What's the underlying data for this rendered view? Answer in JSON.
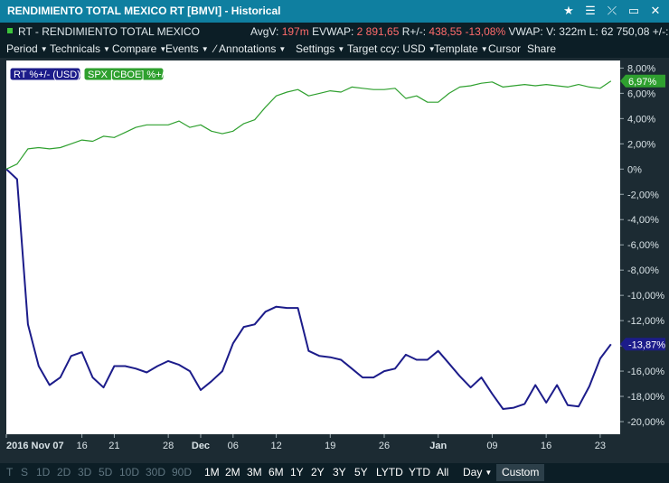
{
  "title": "RENDIMIENTO TOTAL MEXICO RT [BMVI] - Historical",
  "window_icons": [
    "star-icon",
    "menu-icon",
    "unlink-icon",
    "minimize-icon",
    "close-icon"
  ],
  "window_glyphs": [
    "★",
    "☰",
    "⤫",
    "▭",
    "✕"
  ],
  "info": {
    "instrument": "RT - RENDIMIENTO TOTAL MEXICO",
    "avgv_label": "AvgV:",
    "avgv": "197m",
    "evwap_label": "EVWAP:",
    "evwap": "2 891,65",
    "rpm_label": "R+/-:",
    "rpm": "438,55",
    "rpm_pct": "-13,08%",
    "vwap_label": "VWAP:",
    "v": "V: 322m",
    "l": "L: 62 750,08",
    "tail": "+/-:"
  },
  "menu": [
    "Period",
    "Technicals",
    "Compare",
    "Events",
    "Annotations",
    "Settings",
    "Target ccy: USD",
    "Template",
    "Cursor",
    "Share"
  ],
  "chart_data": {
    "type": "line",
    "x": [
      "Nov 07",
      "Nov 08",
      "Nov 09",
      "Nov 10",
      "Nov 11",
      "Nov 14",
      "Nov 15",
      "Nov 16",
      "Nov 17",
      "Nov 18",
      "Nov 21",
      "Nov 22",
      "Nov 23",
      "Nov 24",
      "Nov 25",
      "Nov 28",
      "Nov 29",
      "Nov 30",
      "Dec 01",
      "Dec 02",
      "Dec 05",
      "Dec 06",
      "Dec 07",
      "Dec 08",
      "Dec 09",
      "Dec 12",
      "Dec 13",
      "Dec 14",
      "Dec 15",
      "Dec 16",
      "Dec 19",
      "Dec 20",
      "Dec 21",
      "Dec 22",
      "Dec 23",
      "Dec 26",
      "Dec 27",
      "Dec 28",
      "Dec 29",
      "Dec 30",
      "Jan 02",
      "Jan 03",
      "Jan 04",
      "Jan 05",
      "Jan 06",
      "Jan 09",
      "Jan 10",
      "Jan 11",
      "Jan 12",
      "Jan 13",
      "Jan 16",
      "Jan 17",
      "Jan 18",
      "Jan 19",
      "Jan 20",
      "Jan 23",
      "Jan 24"
    ],
    "series": [
      {
        "name": "RT %+/- (USD)",
        "color": "#1c1c8a",
        "values": [
          0,
          -0.8,
          -12.3,
          -15.6,
          -17.1,
          -16.5,
          -14.8,
          -14.5,
          -16.5,
          -17.3,
          -15.6,
          -15.6,
          -15.8,
          -16.1,
          -15.6,
          -15.2,
          -15.5,
          -16.0,
          -17.5,
          -16.8,
          -16.0,
          -13.8,
          -12.5,
          -12.3,
          -11.3,
          -10.9,
          -11.0,
          -11.0,
          -14.4,
          -14.8,
          -14.9,
          -15.1,
          -15.8,
          -16.5,
          -16.5,
          -16.0,
          -15.8,
          -14.7,
          -15.1,
          -15.1,
          -14.4,
          -15.4,
          -16.4,
          -17.3,
          -16.5,
          -17.8,
          -19.0,
          -18.9,
          -18.6,
          -17.1,
          -18.5,
          -17.1,
          -18.7,
          -18.8,
          -17.2,
          -15.0,
          -13.87
        ]
      },
      {
        "name": "SPX [CBOE] %+/-",
        "color": "#2fa02f",
        "values": [
          0,
          0.4,
          1.6,
          1.7,
          1.6,
          1.7,
          2.0,
          2.3,
          2.2,
          2.6,
          2.5,
          2.9,
          3.3,
          3.5,
          3.5,
          3.5,
          3.8,
          3.3,
          3.5,
          3.0,
          2.8,
          3.0,
          3.6,
          3.9,
          4.9,
          5.8,
          6.1,
          6.3,
          5.8,
          6.0,
          6.2,
          6.1,
          6.5,
          6.4,
          6.3,
          6.3,
          6.4,
          5.6,
          5.8,
          5.3,
          5.3,
          6.0,
          6.5,
          6.6,
          6.8,
          6.9,
          6.5,
          6.6,
          6.7,
          6.6,
          6.7,
          6.6,
          6.5,
          6.7,
          6.5,
          6.4,
          6.97
        ]
      }
    ],
    "last_labels": [
      "6,97%",
      "-13,87%"
    ],
    "ylim": [
      -21,
      8.6
    ],
    "y_ticks": [
      "8,00%",
      "6,00%",
      "4,00%",
      "2,00%",
      "0%",
      "-2,00%",
      "-4,00%",
      "-6,00%",
      "-8,00%",
      "-10,00%",
      "-12,00%",
      "-14,00%",
      "-16,00%",
      "-18,00%",
      "-20,00%"
    ],
    "x_ticks": [
      {
        "label": "2016 Nov 07",
        "i": 0
      },
      {
        "label": "16",
        "i": 7
      },
      {
        "label": "21",
        "i": 10
      },
      {
        "label": "28",
        "i": 15
      },
      {
        "label": "Dec",
        "i": 18
      },
      {
        "label": "06",
        "i": 21
      },
      {
        "label": "12",
        "i": 25
      },
      {
        "label": "19",
        "i": 30
      },
      {
        "label": "26",
        "i": 35
      },
      {
        "label": "Jan",
        "i": 40
      },
      {
        "label": "09",
        "i": 45
      },
      {
        "label": "16",
        "i": 50
      },
      {
        "label": "23",
        "i": 55
      }
    ],
    "legend": [
      "RT %+/- (USD)",
      "SPX [CBOE] %+/-"
    ]
  },
  "bottom": {
    "disabled": [
      "T",
      "S",
      "1D",
      "2D",
      "3D",
      "5D",
      "10D",
      "30D",
      "90D"
    ],
    "enabled": [
      "1M",
      "2M",
      "3M",
      "6M",
      "1Y",
      "2Y",
      "3Y",
      "5Y",
      "LYTD",
      "YTD",
      "All"
    ],
    "interval": "Day",
    "custom": "Custom"
  }
}
